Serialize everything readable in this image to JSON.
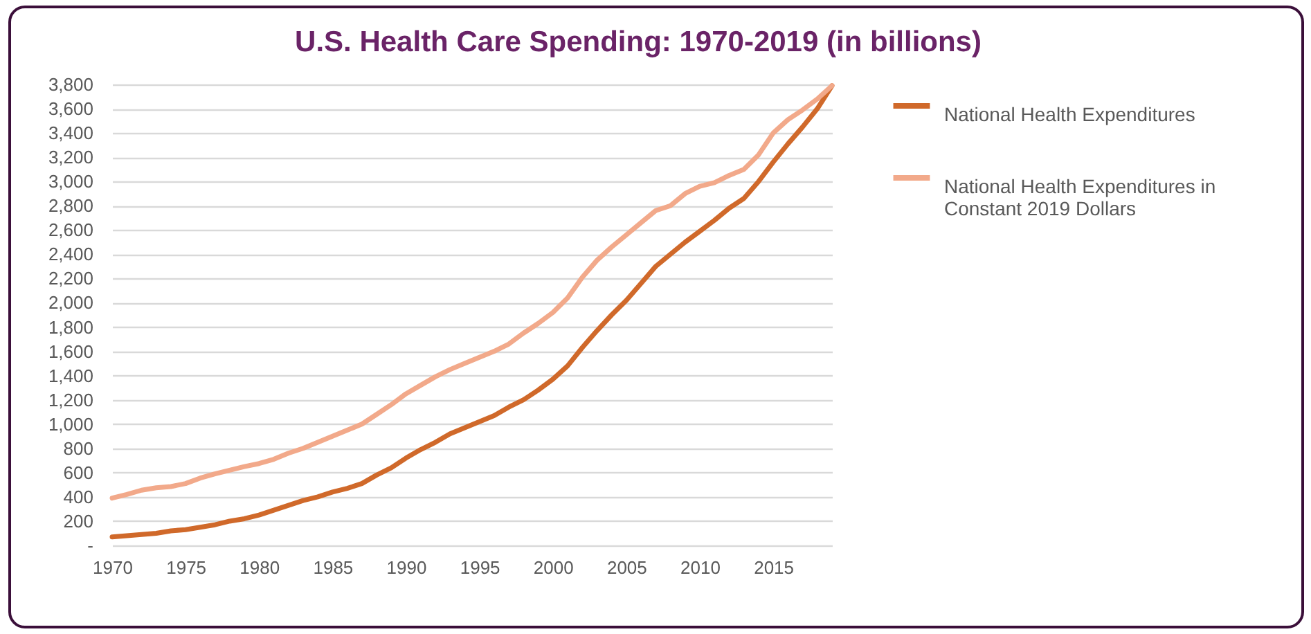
{
  "chart_data": {
    "type": "line",
    "title": "U.S. Health Care Spending: 1970-2019 (in billions)",
    "x": [
      1970,
      1971,
      1972,
      1973,
      1974,
      1975,
      1976,
      1977,
      1978,
      1979,
      1980,
      1981,
      1982,
      1983,
      1984,
      1985,
      1986,
      1987,
      1988,
      1989,
      1990,
      1991,
      1992,
      1993,
      1994,
      1995,
      1996,
      1997,
      1998,
      1999,
      2000,
      2001,
      2002,
      2003,
      2004,
      2005,
      2006,
      2007,
      2008,
      2009,
      2010,
      2011,
      2012,
      2013,
      2014,
      2015,
      2016,
      2017,
      2018,
      2019
    ],
    "series": [
      {
        "name": "National Health Expenditures",
        "color": "#d0692a",
        "values": [
          70,
          80,
          90,
          100,
          120,
          130,
          150,
          170,
          200,
          220,
          250,
          290,
          330,
          370,
          400,
          440,
          470,
          510,
          580,
          640,
          720,
          790,
          850,
          920,
          970,
          1020,
          1070,
          1140,
          1200,
          1280,
          1370,
          1480,
          1630,
          1770,
          1900,
          2020,
          2160,
          2300,
          2400,
          2500,
          2590,
          2680,
          2780,
          2860,
          3000,
          3160,
          3310,
          3450,
          3600,
          3790
        ]
      },
      {
        "name": "National Health Expenditures in Constant 2019 Dollars",
        "color": "#f2a98a",
        "values": [
          390,
          420,
          455,
          475,
          485,
          510,
          555,
          590,
          620,
          650,
          675,
          710,
          760,
          800,
          850,
          900,
          950,
          1000,
          1080,
          1160,
          1250,
          1320,
          1390,
          1450,
          1500,
          1550,
          1600,
          1660,
          1750,
          1830,
          1920,
          2040,
          2210,
          2350,
          2460,
          2560,
          2660,
          2760,
          2800,
          2900,
          2960,
          2990,
          3050,
          3100,
          3220,
          3400,
          3510,
          3590,
          3680,
          3790
        ]
      }
    ],
    "xlim": [
      1970,
      2019
    ],
    "xticks": [
      1970,
      1975,
      1980,
      1985,
      1990,
      1995,
      2000,
      2005,
      2010,
      2015
    ],
    "ylim": [
      0,
      3800
    ],
    "yticks": [
      {
        "value": 0,
        "label": "-"
      },
      {
        "value": 200,
        "label": "200"
      },
      {
        "value": 400,
        "label": "400"
      },
      {
        "value": 600,
        "label": "600"
      },
      {
        "value": 800,
        "label": "800"
      },
      {
        "value": 1000,
        "label": "1,000"
      },
      {
        "value": 1200,
        "label": "1,200"
      },
      {
        "value": 1400,
        "label": "1,400"
      },
      {
        "value": 1600,
        "label": "1,600"
      },
      {
        "value": 1800,
        "label": "1,800"
      },
      {
        "value": 2000,
        "label": "2,000"
      },
      {
        "value": 2200,
        "label": "2,200"
      },
      {
        "value": 2400,
        "label": "2,400"
      },
      {
        "value": 2600,
        "label": "2,600"
      },
      {
        "value": 2800,
        "label": "2,800"
      },
      {
        "value": 3000,
        "label": "3,000"
      },
      {
        "value": 3200,
        "label": "3,200"
      },
      {
        "value": 3400,
        "label": "3,400"
      },
      {
        "value": 3600,
        "label": "3,600"
      },
      {
        "value": 3800,
        "label": "3,800"
      }
    ],
    "grid": "y",
    "legend": "right",
    "marker": "none",
    "line_style": "solid"
  }
}
